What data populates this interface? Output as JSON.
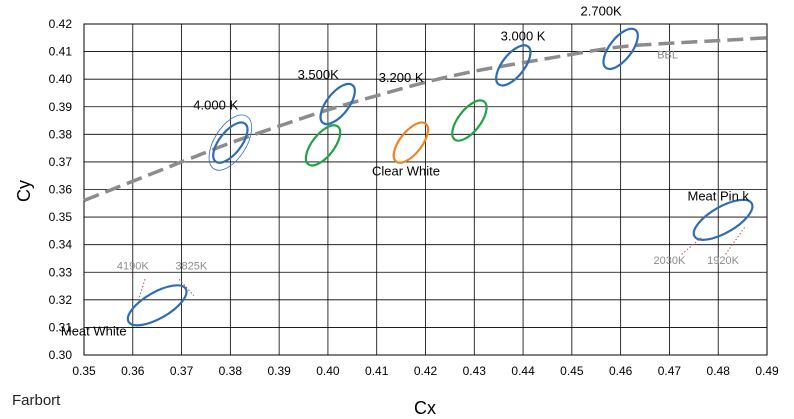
{
  "credit": "Farbort",
  "chart_data": {
    "type": "scatter",
    "xlabel": "Cx",
    "ylabel": "Cy",
    "xlim": [
      0.35,
      0.49
    ],
    "ylim": [
      0.3,
      0.42
    ],
    "xticks": [
      "0.35",
      "0.36",
      "0.37",
      "0.38",
      "0.39",
      "0.40",
      "0.41",
      "0.42",
      "0.43",
      "0.44",
      "0.45",
      "0.46",
      "0.47",
      "0.48",
      "0.49"
    ],
    "yticks": [
      "0.30",
      "0.31",
      "0.32",
      "0.33",
      "0.34",
      "0.35",
      "0.36",
      "0.37",
      "0.38",
      "0.39",
      "0.40",
      "0.41",
      "0.42"
    ],
    "grid": true,
    "bbl": {
      "label": "BBL",
      "color": "#8c8c8c",
      "points": [
        [
          0.35,
          0.356
        ],
        [
          0.36,
          0.363
        ],
        [
          0.37,
          0.37
        ],
        [
          0.38,
          0.377
        ],
        [
          0.39,
          0.383
        ],
        [
          0.4,
          0.389
        ],
        [
          0.41,
          0.394
        ],
        [
          0.42,
          0.399
        ],
        [
          0.43,
          0.403
        ],
        [
          0.44,
          0.406
        ],
        [
          0.45,
          0.409
        ],
        [
          0.46,
          0.412
        ],
        [
          0.47,
          0.413
        ],
        [
          0.48,
          0.414
        ],
        [
          0.49,
          0.415
        ]
      ]
    },
    "ellipses": [
      {
        "label": "4.000  K",
        "color": "#2e6db4",
        "cx": 0.38,
        "cy": 0.377,
        "label_x": 0.377,
        "label_y": 0.389
      },
      {
        "label": "3.500K",
        "color": "#2e6db4",
        "cx": 0.402,
        "cy": 0.391,
        "label_x": 0.398,
        "label_y": 0.4
      },
      {
        "label": "3.000  K",
        "color": "#2e6db4",
        "cx": 0.438,
        "cy": 0.405,
        "label_x": 0.44,
        "label_y": 0.414
      },
      {
        "label": "2.700K",
        "color": "#2e6db4",
        "cx": 0.46,
        "cy": 0.411,
        "label_x": 0.456,
        "label_y": 0.423
      },
      {
        "label": "Meat White",
        "color": "#2e6db4",
        "cx": 0.365,
        "cy": 0.318,
        "label_x": 0.352,
        "label_y": 0.307
      },
      {
        "label": "Meat Pin k",
        "color": "#2e6db4",
        "cx": 0.481,
        "cy": 0.349,
        "label_x": 0.48,
        "label_y": 0.356
      },
      {
        "label": "",
        "color": "#22a348",
        "cx": 0.399,
        "cy": 0.376
      },
      {
        "label": "Clear White",
        "color": "#f5821f",
        "cx": 0.417,
        "cy": 0.377,
        "label_x": 0.416,
        "label_y": 0.365
      },
      {
        "label": "",
        "color": "#22a348",
        "cx": 0.429,
        "cy": 0.385
      }
    ],
    "annotations": [
      {
        "text": "3.200  K",
        "x": 0.415,
        "y": 0.399
      },
      {
        "text": "4190K",
        "x": 0.36,
        "y": 0.331
      },
      {
        "text": "3825K",
        "x": 0.372,
        "y": 0.331
      },
      {
        "text": "2030K",
        "x": 0.47,
        "y": 0.333
      },
      {
        "text": "1920K",
        "x": 0.481,
        "y": 0.333
      }
    ]
  }
}
